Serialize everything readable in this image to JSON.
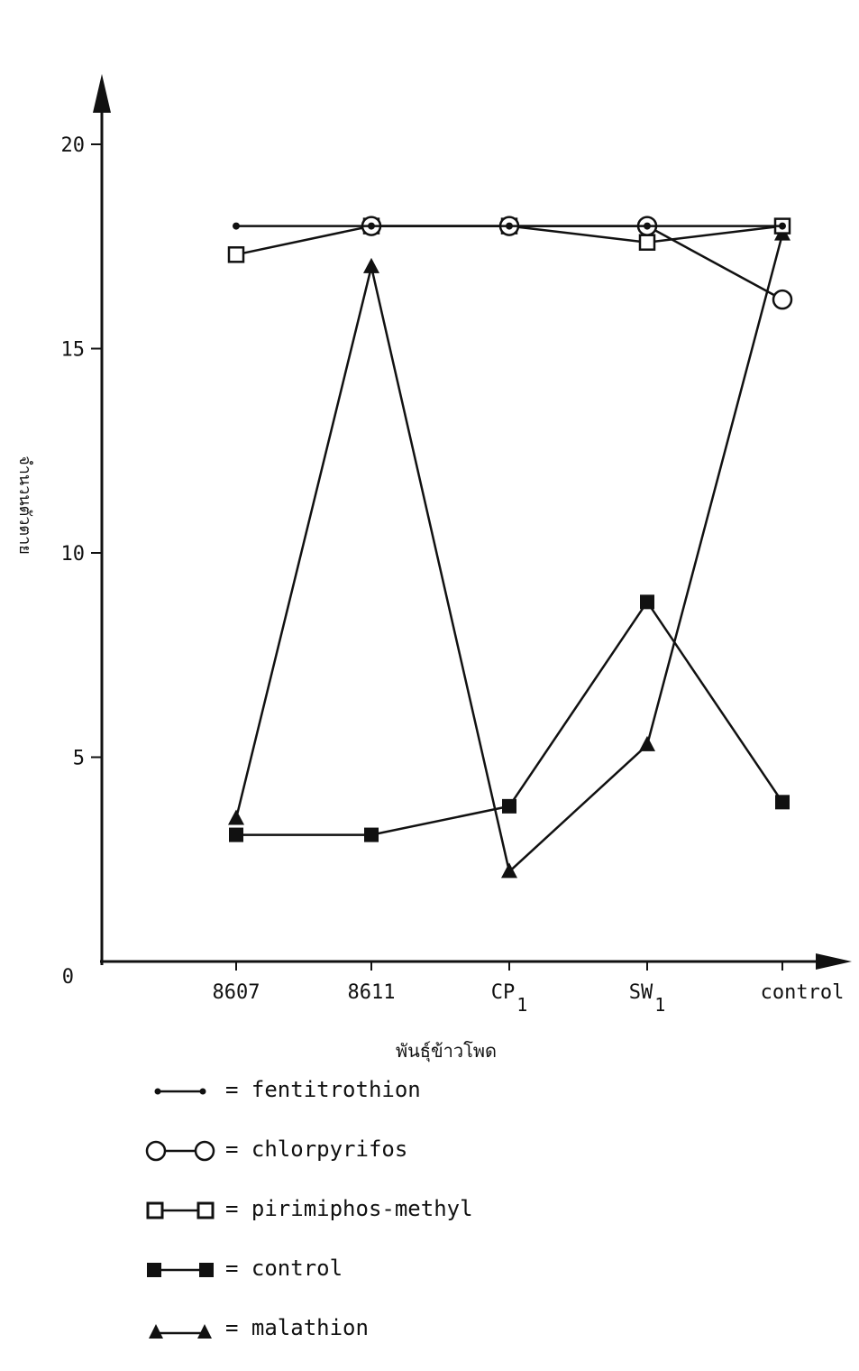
{
  "chart_data": {
    "type": "line",
    "xlabel": "พันธุ์ข้าวโพด",
    "ylabel": "จำนวนตัวตาย",
    "categories": [
      {
        "base": "8607",
        "sub": ""
      },
      {
        "base": "8611",
        "sub": ""
      },
      {
        "base": "CP",
        "sub": "1"
      },
      {
        "base": "SW",
        "sub": "1"
      },
      {
        "base": "control",
        "sub": ""
      }
    ],
    "yticks": [
      "0",
      "5",
      "10",
      "15",
      "20"
    ],
    "ylim": [
      0,
      20
    ],
    "grid": false,
    "legend_position": "bottom",
    "series": [
      {
        "name": "fentitrothion",
        "marker": "dot",
        "values": [
          18,
          18,
          18,
          18,
          18
        ]
      },
      {
        "name": "chlorpyrifos",
        "marker": "open-circle",
        "values": [
          null,
          18,
          18,
          18,
          16.2
        ]
      },
      {
        "name": "pirimiphos-methyl",
        "marker": "open-square",
        "values": [
          17.3,
          18,
          18,
          17.6,
          18
        ]
      },
      {
        "name": "control",
        "marker": "filled-square",
        "values": [
          3.1,
          3.1,
          3.8,
          8.8,
          3.9
        ]
      },
      {
        "name": "malathion",
        "marker": "filled-triangle",
        "values": [
          3.5,
          17,
          2.2,
          5.3,
          17.8
        ]
      }
    ]
  },
  "legend": {
    "separator": "="
  }
}
